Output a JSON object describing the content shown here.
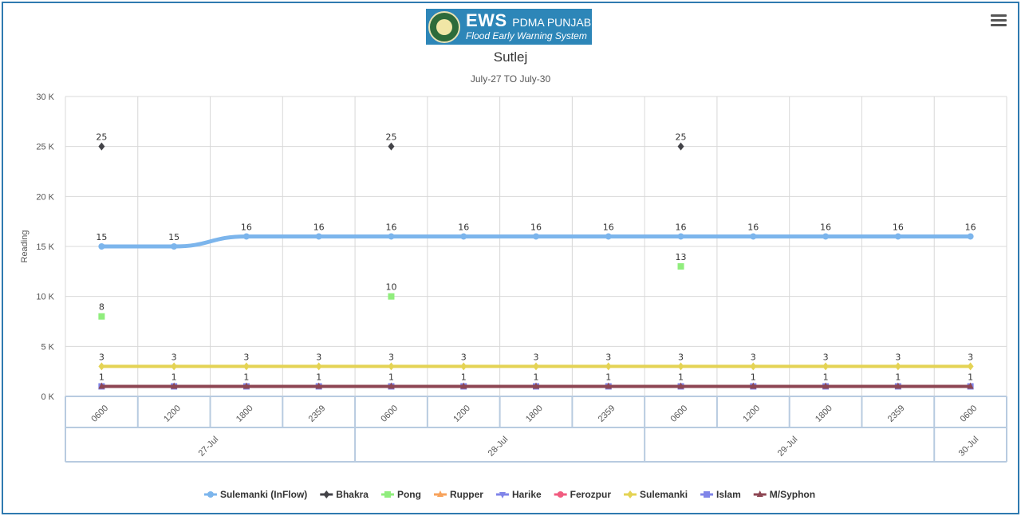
{
  "header": {
    "logo_main": "EWS",
    "logo_org": "PDMA PUNJAB",
    "logo_sub": "Flood Early Warning System",
    "menu_icon": "hamburger-menu-icon"
  },
  "chart_data": {
    "type": "line",
    "title": "Sutlej",
    "subtitle": "July-27 TO July-30",
    "xlabel": "",
    "ylabel": "Reading",
    "ylim": [
      0,
      30000
    ],
    "y_ticks": [
      {
        "value": 0,
        "label": "0 K"
      },
      {
        "value": 5000,
        "label": "5 K"
      },
      {
        "value": 10000,
        "label": "10 K"
      },
      {
        "value": 15000,
        "label": "15 K"
      },
      {
        "value": 20000,
        "label": "20 K"
      },
      {
        "value": 25000,
        "label": "25 K"
      },
      {
        "value": 30000,
        "label": "30 K"
      }
    ],
    "grid": true,
    "legend_position": "bottom-center",
    "categories": [
      "0600",
      "1200",
      "1800",
      "2359",
      "0600",
      "1200",
      "1800",
      "2359",
      "0600",
      "1200",
      "1800",
      "2359",
      "0600"
    ],
    "category_groups": [
      {
        "label": "27-Jul",
        "count": 4
      },
      {
        "label": "28-Jul",
        "count": 4
      },
      {
        "label": "29-Jul",
        "count": 4
      },
      {
        "label": "30-Jul",
        "count": 1
      }
    ],
    "series": [
      {
        "name": "Sulemanki (InFlow)",
        "color": "#7cb5ec",
        "marker": "circle",
        "line": true,
        "values": [
          15000,
          15000,
          16000,
          16000,
          16000,
          16000,
          16000,
          16000,
          16000,
          16000,
          16000,
          16000,
          16000
        ],
        "labels": [
          "15",
          "15",
          "16",
          "16",
          "16",
          "16",
          "16",
          "16",
          "16",
          "16",
          "16",
          "16",
          "16"
        ]
      },
      {
        "name": "Bhakra",
        "color": "#434348",
        "marker": "diamond",
        "line": false,
        "values": [
          25000,
          null,
          null,
          null,
          25000,
          null,
          null,
          null,
          25000,
          null,
          null,
          null,
          null
        ],
        "labels": [
          "25",
          null,
          null,
          null,
          "25",
          null,
          null,
          null,
          "25",
          null,
          null,
          null,
          null
        ]
      },
      {
        "name": "Pong",
        "color": "#90ed7d",
        "marker": "square",
        "line": false,
        "values": [
          8000,
          null,
          null,
          null,
          10000,
          null,
          null,
          null,
          13000,
          null,
          null,
          null,
          null
        ],
        "labels": [
          "8",
          null,
          null,
          null,
          "10",
          null,
          null,
          null,
          "13",
          null,
          null,
          null,
          null
        ]
      },
      {
        "name": "Rupper",
        "color": "#f7a35c",
        "marker": "triangle",
        "line": true,
        "values": [
          null,
          null,
          null,
          null,
          null,
          null,
          null,
          null,
          null,
          null,
          null,
          null,
          null
        ],
        "labels": [
          null,
          null,
          null,
          null,
          null,
          null,
          null,
          null,
          null,
          null,
          null,
          null,
          null
        ]
      },
      {
        "name": "Harike",
        "color": "#8085e9",
        "marker": "triangle-down",
        "line": true,
        "values": [
          null,
          null,
          null,
          null,
          null,
          null,
          null,
          null,
          null,
          null,
          null,
          null,
          null
        ],
        "labels": [
          null,
          null,
          null,
          null,
          null,
          null,
          null,
          null,
          null,
          null,
          null,
          null,
          null
        ]
      },
      {
        "name": "Ferozpur",
        "color": "#f15c80",
        "marker": "circle",
        "line": true,
        "values": [
          null,
          null,
          null,
          null,
          null,
          null,
          null,
          null,
          null,
          null,
          null,
          null,
          null
        ],
        "labels": [
          null,
          null,
          null,
          null,
          null,
          null,
          null,
          null,
          null,
          null,
          null,
          null,
          null
        ]
      },
      {
        "name": "Sulemanki",
        "color": "#e4d354",
        "marker": "diamond",
        "line": true,
        "values": [
          3000,
          3000,
          3000,
          3000,
          3000,
          3000,
          3000,
          3000,
          3000,
          3000,
          3000,
          3000,
          3000
        ],
        "labels": [
          "3",
          "3",
          "3",
          "3",
          "3",
          "3",
          "3",
          "3",
          "3",
          "3",
          "3",
          "3",
          "3"
        ]
      },
      {
        "name": "Islam",
        "color": "#8085e8",
        "marker": "square",
        "line": true,
        "values": [
          1000,
          1000,
          1000,
          1000,
          1000,
          1000,
          1000,
          1000,
          1000,
          1000,
          1000,
          1000,
          1000
        ],
        "labels": [
          null,
          null,
          null,
          null,
          null,
          null,
          null,
          null,
          null,
          null,
          null,
          null,
          null
        ]
      },
      {
        "name": "M/Syphon",
        "color": "#8d4653",
        "marker": "triangle",
        "line": true,
        "values": [
          1000,
          1000,
          1000,
          1000,
          1000,
          1000,
          1000,
          1000,
          1000,
          1000,
          1000,
          1000,
          1000
        ],
        "labels": [
          "1",
          "1",
          "1",
          "1",
          "1",
          "1",
          "1",
          "1",
          "1",
          "1",
          "1",
          "1",
          "1"
        ]
      }
    ]
  }
}
